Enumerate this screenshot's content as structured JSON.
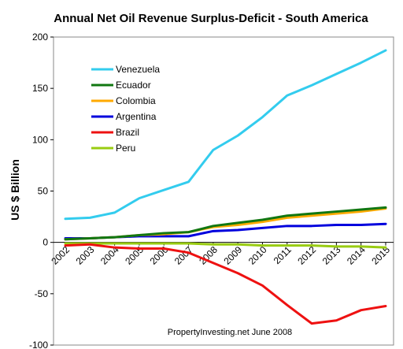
{
  "chart_data": {
    "type": "line",
    "title": "Annual Net Oil Revenue Surplus-Deficit - South America",
    "xlabel": "",
    "ylabel": "US $ Billion",
    "ylim": [
      -100,
      200
    ],
    "yticks": [
      -100,
      -50,
      0,
      50,
      100,
      150,
      200
    ],
    "grid": false,
    "legend_position": "top-left",
    "categories": [
      "2002",
      "2003",
      "2004",
      "2005",
      "2006",
      "2007",
      "2008",
      "2009",
      "2010",
      "2011",
      "2012",
      "2013",
      "2014",
      "2015"
    ],
    "series": [
      {
        "name": "Venezuela",
        "color": "#33CCEE",
        "values": [
          23,
          24,
          29,
          43,
          51,
          59,
          90,
          104,
          122,
          143,
          153,
          164,
          175,
          187
        ]
      },
      {
        "name": "Ecuador",
        "color": "#117711",
        "values": [
          3,
          4,
          5,
          7,
          9,
          10,
          16,
          19,
          22,
          26,
          28,
          30,
          32,
          34
        ]
      },
      {
        "name": "Colombia",
        "color": "#FFAA00",
        "values": [
          3,
          4,
          5,
          7,
          8,
          10,
          15,
          17,
          20,
          24,
          26,
          28,
          30,
          33
        ]
      },
      {
        "name": "Argentina",
        "color": "#0000DD",
        "values": [
          4,
          4,
          5,
          6,
          6,
          6,
          11,
          12,
          14,
          16,
          16,
          17,
          17,
          18
        ]
      },
      {
        "name": "Brazil",
        "color": "#EE1111",
        "values": [
          -3,
          -2,
          -5,
          -6,
          -6,
          -10,
          -20,
          -30,
          -42,
          -61,
          -79,
          -76,
          -66,
          -62
        ]
      },
      {
        "name": "Peru",
        "color": "#99CC11",
        "values": [
          -1,
          -1,
          -1,
          -1,
          -1,
          -1,
          -2,
          -2,
          -3,
          -3,
          -3,
          -4,
          -4,
          -5
        ]
      }
    ],
    "annotations": [
      {
        "text": "PropertyInvesting.net    June 2008"
      }
    ]
  }
}
